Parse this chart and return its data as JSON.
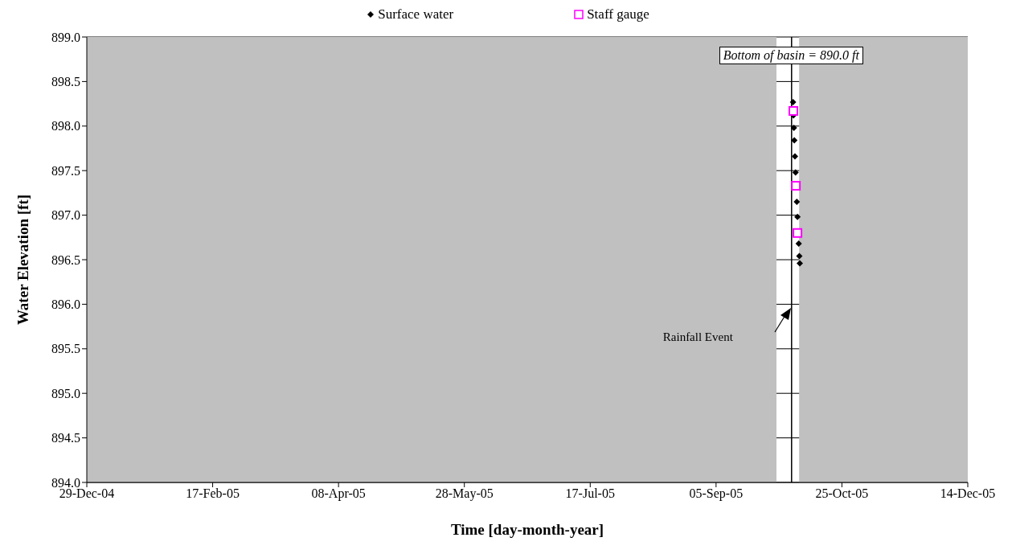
{
  "chart_data": {
    "type": "scatter",
    "xlabel": "Time [day-month-year]",
    "ylabel": "Water Elevation [ft]",
    "xlim": [
      "2004-12-29",
      "2005-12-14"
    ],
    "xticks": [
      {
        "value": "2004-12-29",
        "label": "29-Dec-04"
      },
      {
        "value": "2005-02-17",
        "label": "17-Feb-05"
      },
      {
        "value": "2005-04-08",
        "label": "08-Apr-05"
      },
      {
        "value": "2005-05-28",
        "label": "28-May-05"
      },
      {
        "value": "2005-07-17",
        "label": "17-Jul-05"
      },
      {
        "value": "2005-09-05",
        "label": "05-Sep-05"
      },
      {
        "value": "2005-10-25",
        "label": "25-Oct-05"
      },
      {
        "value": "2005-12-14",
        "label": "14-Dec-05"
      }
    ],
    "ylim": [
      894,
      899
    ],
    "yticks": [
      {
        "value": 894,
        "label": "894.0"
      },
      {
        "value": 894.5,
        "label": "894.5"
      },
      {
        "value": 895,
        "label": "895.0"
      },
      {
        "value": 895.5,
        "label": "895.5"
      },
      {
        "value": 896,
        "label": "896.0"
      },
      {
        "value": 896.5,
        "label": "896.5"
      },
      {
        "value": 897,
        "label": "897.0"
      },
      {
        "value": 897.5,
        "label": "897.5"
      },
      {
        "value": 898,
        "label": "898.0"
      },
      {
        "value": 898.5,
        "label": "898.5"
      },
      {
        "value": 899,
        "label": "899.0"
      }
    ],
    "grid": "y",
    "legend": "top",
    "series": [
      {
        "name": "Surface water",
        "color": "#000000",
        "marker": "diamond",
        "x": [
          "2005-10-05T14:00",
          "2005-10-05T18:00",
          "2005-10-05T22:00",
          "2005-10-06T02:00",
          "2005-10-06T08:00",
          "2005-10-06T14:00",
          "2005-10-07T02:00",
          "2005-10-07T08:00",
          "2005-10-07T20:00",
          "2005-10-08T02:00",
          "2005-10-08T06:00"
        ],
        "values": [
          898.27,
          898.12,
          897.98,
          897.84,
          897.66,
          897.48,
          897.15,
          896.98,
          896.68,
          896.54,
          896.46
        ]
      },
      {
        "name": "Staff gauge",
        "color": "#ff00ff",
        "marker": "square",
        "x": [
          "2005-10-05T17:00",
          "2005-10-06T17:00",
          "2005-10-07T08:00"
        ],
        "values": [
          898.17,
          897.33,
          896.8
        ]
      }
    ],
    "bands": [
      {
        "axis": "x",
        "from": "2004-12-29",
        "to": "2005-09-29",
        "color": "#c0c0c0"
      },
      {
        "axis": "x",
        "from": "2005-10-08",
        "to": "2005-12-14",
        "color": "#c0c0c0"
      }
    ],
    "ref_lines": [
      {
        "axis": "x",
        "value": "2005-10-05",
        "color": "#000000"
      }
    ],
    "annotations": [
      "Bottom of basin = 890.0 ft",
      "Rainfall Event"
    ]
  }
}
